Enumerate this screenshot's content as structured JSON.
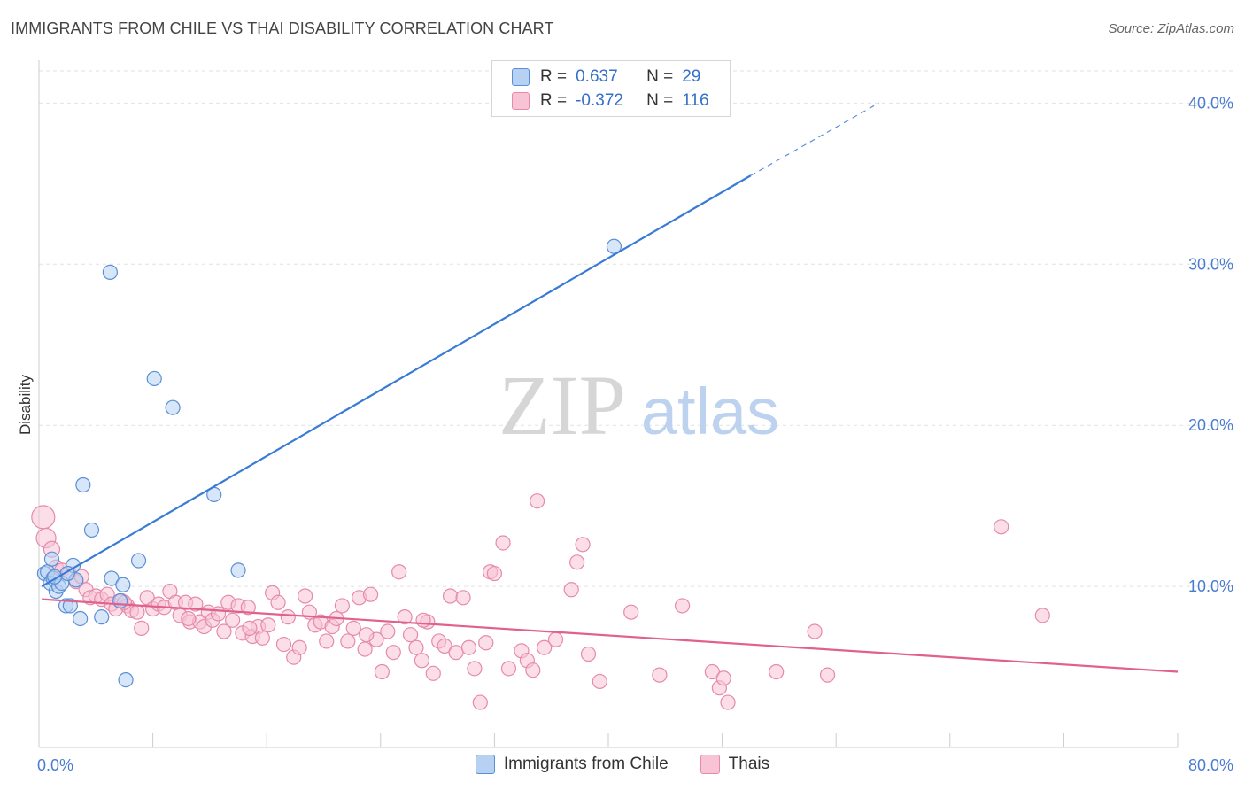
{
  "title": "IMMIGRANTS FROM CHILE VS THAI DISABILITY CORRELATION CHART",
  "source": "Source: ZipAtlas.com",
  "watermark": {
    "zip": "ZIP",
    "atlas": "atlas"
  },
  "colors": {
    "blue": "#3a7bd5",
    "blue_fill": "#b7d1f3",
    "blue_stroke": "#5a8fd6",
    "pink": "#e0608e",
    "pink_fill": "#f8c3d5",
    "pink_stroke": "#e68aaa"
  },
  "legend": {
    "rows": [
      {
        "r_label": "R =",
        "r_value": "0.637",
        "n_label": "N =",
        "n_value": "29"
      },
      {
        "r_label": "R =",
        "r_value": "-0.372",
        "n_label": "N =",
        "n_value": "116"
      }
    ]
  },
  "bottom_legend": {
    "series": [
      "Immigrants from Chile",
      "Thais"
    ]
  },
  "chart_data": {
    "type": "scatter",
    "title": "IMMIGRANTS FROM CHILE VS THAI DISABILITY CORRELATION CHART",
    "xlabel": "",
    "ylabel": "Disability",
    "xlim": [
      0,
      80
    ],
    "ylim": [
      0,
      42
    ],
    "x_tick_labels": [
      "0.0%",
      "80.0%"
    ],
    "y_ticks": [
      10,
      20,
      30,
      40
    ],
    "y_tick_labels": [
      "10.0%",
      "20.0%",
      "30.0%",
      "40.0%"
    ],
    "grid": true,
    "legend_position": "top-center",
    "series": [
      {
        "name": "Immigrants from Chile",
        "color": "#3a7bd5",
        "points": [
          [
            0.4,
            10.8
          ],
          [
            0.6,
            10.9
          ],
          [
            0.8,
            10.2
          ],
          [
            1.0,
            10.5
          ],
          [
            1.2,
            9.7
          ],
          [
            1.4,
            10.0
          ],
          [
            1.6,
            10.2
          ],
          [
            1.9,
            8.8
          ],
          [
            2.2,
            8.8
          ],
          [
            2.4,
            11.3
          ],
          [
            2.6,
            10.4
          ],
          [
            3.1,
            16.3
          ],
          [
            3.7,
            13.5
          ],
          [
            4.4,
            8.1
          ],
          [
            5.0,
            29.5
          ],
          [
            5.1,
            10.5
          ],
          [
            5.7,
            9.1
          ],
          [
            5.9,
            10.1
          ],
          [
            6.1,
            4.2
          ],
          [
            7.0,
            11.6
          ],
          [
            8.1,
            22.9
          ],
          [
            9.4,
            21.1
          ],
          [
            12.3,
            15.7
          ],
          [
            14.0,
            11.0
          ],
          [
            40.4,
            31.1
          ],
          [
            2.0,
            10.8
          ],
          [
            1.1,
            10.6
          ],
          [
            2.9,
            8.0
          ],
          [
            0.9,
            11.7
          ]
        ],
        "trend": {
          "x": [
            0.2,
            50.0
          ],
          "y": [
            10.0,
            35.5
          ],
          "dashed_to": [
            59.0,
            40.0
          ]
        }
      },
      {
        "name": "Thais",
        "color": "#e0608e",
        "points": [
          [
            0.3,
            14.3
          ],
          [
            0.5,
            13.0
          ],
          [
            0.9,
            12.3
          ],
          [
            1.2,
            11.2
          ],
          [
            1.6,
            11.0
          ],
          [
            2.1,
            10.8
          ],
          [
            2.6,
            10.3
          ],
          [
            3.0,
            10.6
          ],
          [
            3.3,
            9.8
          ],
          [
            3.6,
            9.3
          ],
          [
            4.0,
            9.4
          ],
          [
            4.4,
            9.2
          ],
          [
            4.8,
            9.5
          ],
          [
            5.1,
            8.9
          ],
          [
            5.4,
            8.6
          ],
          [
            5.8,
            9.1
          ],
          [
            6.2,
            8.8
          ],
          [
            6.5,
            8.5
          ],
          [
            6.9,
            8.4
          ],
          [
            7.2,
            7.4
          ],
          [
            7.6,
            9.3
          ],
          [
            8.0,
            8.6
          ],
          [
            8.4,
            8.9
          ],
          [
            8.8,
            8.7
          ],
          [
            9.2,
            9.7
          ],
          [
            9.6,
            9.0
          ],
          [
            9.9,
            8.2
          ],
          [
            10.3,
            9.0
          ],
          [
            10.6,
            7.8
          ],
          [
            11.0,
            8.9
          ],
          [
            11.3,
            7.8
          ],
          [
            11.6,
            7.5
          ],
          [
            11.9,
            8.4
          ],
          [
            12.2,
            7.9
          ],
          [
            12.6,
            8.3
          ],
          [
            13.0,
            7.2
          ],
          [
            13.3,
            9.0
          ],
          [
            13.6,
            7.9
          ],
          [
            14.0,
            8.8
          ],
          [
            14.3,
            7.1
          ],
          [
            14.7,
            8.7
          ],
          [
            15.0,
            6.9
          ],
          [
            15.4,
            7.5
          ],
          [
            15.7,
            6.8
          ],
          [
            16.1,
            7.6
          ],
          [
            16.4,
            9.6
          ],
          [
            16.8,
            9.0
          ],
          [
            17.2,
            6.4
          ],
          [
            17.5,
            8.1
          ],
          [
            17.9,
            5.6
          ],
          [
            18.3,
            6.2
          ],
          [
            18.7,
            9.4
          ],
          [
            19.0,
            8.4
          ],
          [
            19.4,
            7.6
          ],
          [
            19.8,
            7.8
          ],
          [
            20.2,
            6.6
          ],
          [
            20.6,
            7.5
          ],
          [
            20.9,
            8.0
          ],
          [
            21.3,
            8.8
          ],
          [
            21.7,
            6.6
          ],
          [
            22.1,
            7.4
          ],
          [
            22.5,
            9.3
          ],
          [
            22.9,
            6.1
          ],
          [
            23.3,
            9.5
          ],
          [
            23.7,
            6.7
          ],
          [
            24.1,
            4.7
          ],
          [
            24.5,
            7.2
          ],
          [
            24.9,
            5.9
          ],
          [
            25.3,
            10.9
          ],
          [
            25.7,
            8.1
          ],
          [
            26.1,
            7.0
          ],
          [
            26.5,
            6.2
          ],
          [
            26.9,
            5.4
          ],
          [
            27.3,
            7.8
          ],
          [
            27.7,
            4.6
          ],
          [
            28.1,
            6.6
          ],
          [
            28.5,
            6.3
          ],
          [
            28.9,
            9.4
          ],
          [
            29.3,
            5.9
          ],
          [
            29.8,
            9.3
          ],
          [
            30.2,
            6.2
          ],
          [
            30.6,
            4.9
          ],
          [
            31.0,
            2.8
          ],
          [
            31.4,
            6.5
          ],
          [
            31.7,
            10.9
          ],
          [
            32.0,
            10.8
          ],
          [
            32.6,
            12.7
          ],
          [
            33.0,
            4.9
          ],
          [
            33.9,
            6.0
          ],
          [
            34.3,
            5.4
          ],
          [
            34.7,
            4.8
          ],
          [
            35.0,
            15.3
          ],
          [
            35.5,
            6.2
          ],
          [
            36.3,
            6.7
          ],
          [
            37.8,
            11.5
          ],
          [
            38.2,
            12.6
          ],
          [
            38.6,
            5.8
          ],
          [
            41.6,
            8.4
          ],
          [
            43.6,
            4.5
          ],
          [
            45.2,
            8.8
          ],
          [
            47.3,
            4.7
          ],
          [
            47.8,
            3.7
          ],
          [
            48.1,
            4.3
          ],
          [
            48.4,
            2.8
          ],
          [
            51.8,
            4.7
          ],
          [
            54.5,
            7.2
          ],
          [
            55.4,
            4.5
          ],
          [
            67.6,
            13.7
          ],
          [
            70.5,
            8.2
          ],
          [
            39.4,
            4.1
          ],
          [
            37.4,
            9.8
          ],
          [
            27.0,
            7.9
          ],
          [
            14.8,
            7.4
          ],
          [
            10.5,
            8.0
          ],
          [
            6.0,
            9.0
          ],
          [
            23.0,
            7.0
          ]
        ],
        "trend": {
          "x": [
            0.2,
            80.0
          ],
          "y": [
            9.2,
            4.7
          ]
        }
      }
    ]
  }
}
